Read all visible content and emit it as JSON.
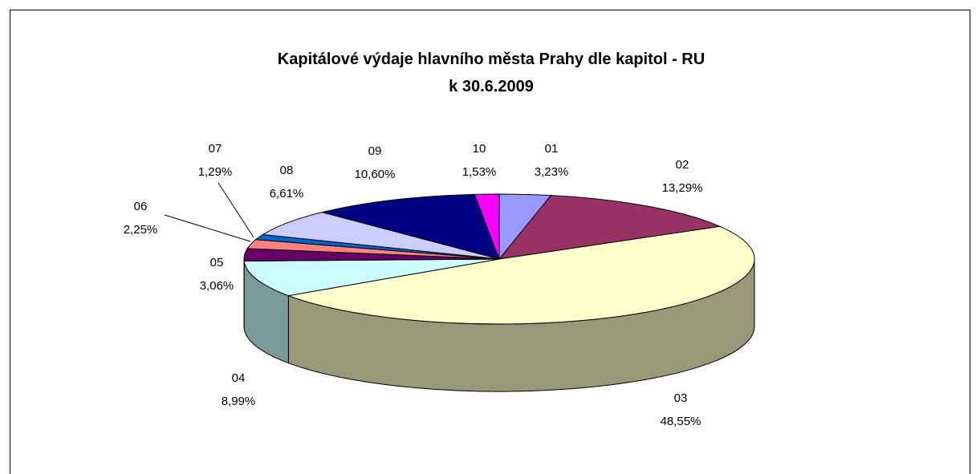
{
  "chart_data": {
    "type": "pie",
    "title": "Kapitálové výdaje hlavního města Prahy dle kapitol - RU",
    "subtitle": "k 30.6.2009",
    "categories": [
      "01",
      "02",
      "03",
      "04",
      "05",
      "06",
      "07",
      "08",
      "09",
      "10"
    ],
    "values": [
      3.23,
      13.29,
      48.55,
      8.99,
      3.06,
      2.25,
      1.29,
      6.61,
      10.6,
      1.53
    ],
    "value_labels": [
      "3,23%",
      "13,29%",
      "48,55%",
      "8,99%",
      "3,06%",
      "2,25%",
      "1,29%",
      "6,61%",
      "10,60%",
      "1,53%"
    ],
    "colors": [
      "#9999ff",
      "#993366",
      "#ffffcc",
      "#ccffff",
      "#660066",
      "#ff8080",
      "#0066cc",
      "#ccccff",
      "#000080",
      "#ff00ff"
    ]
  }
}
